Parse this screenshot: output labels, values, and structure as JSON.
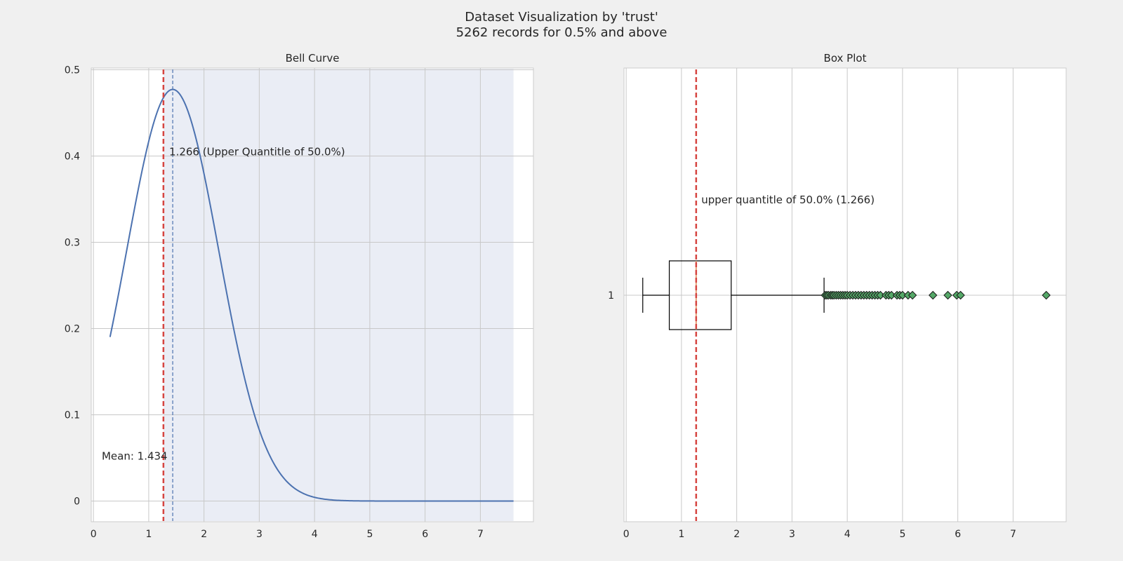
{
  "figure": {
    "title_line1": "Dataset Visualization by 'trust'",
    "title_line2": "5262 records for 0.5% and above",
    "background_color": "#f0f0f0"
  },
  "chart_data": [
    {
      "type": "line",
      "title": "Bell Curve",
      "xlabel": "",
      "ylabel": "",
      "xlim": [
        -0.04,
        7.96
      ],
      "ylim": [
        -0.024,
        0.502
      ],
      "xticks": [
        0,
        1,
        2,
        3,
        4,
        5,
        6,
        7
      ],
      "yticks": [
        0.0,
        0.1,
        0.2,
        0.3,
        0.4,
        0.5
      ],
      "grid": true,
      "series": [
        {
          "normal_curve": {
            "mean": 1.434,
            "std": 0.836,
            "x_start": 0.3,
            "x_end": 7.6
          },
          "color": "#4c72b0"
        }
      ],
      "shaded_region": {
        "x_start": 1.266,
        "x_end": 7.6,
        "color": "#eaedf5"
      },
      "reference_lines": [
        {
          "x": 1.266,
          "style": "dashed",
          "color": "#d64541",
          "role": "upper quantile"
        },
        {
          "x": 1.434,
          "style": "dashed",
          "color": "#4c72b0",
          "role": "mean"
        }
      ],
      "annotations": [
        {
          "text": "1.266 (Upper Quantitle of 50.0%)",
          "x": 1.37,
          "y": 0.405
        },
        {
          "text": "Mean: 1.434",
          "x": 0.15,
          "y": 0.052
        }
      ]
    },
    {
      "type": "box",
      "title": "Box Plot",
      "xlim": [
        -0.04,
        7.96
      ],
      "xticks": [
        0,
        1,
        2,
        3,
        4,
        5,
        6,
        7
      ],
      "yticks": [
        "1"
      ],
      "grid": true,
      "box": {
        "whisker_low": 0.3,
        "q1": 0.78,
        "median": 1.266,
        "q3": 1.9,
        "whisker_high": 3.58,
        "median_color": "#dd8452"
      },
      "outliers": [
        3.6,
        3.63,
        3.66,
        3.7,
        3.73,
        3.76,
        3.8,
        3.84,
        3.88,
        3.92,
        3.96,
        4.0,
        4.05,
        4.1,
        4.15,
        4.2,
        4.25,
        4.3,
        4.35,
        4.4,
        4.45,
        4.5,
        4.55,
        4.6,
        4.7,
        4.75,
        4.8,
        4.9,
        4.95,
        5.0,
        5.1,
        5.18,
        5.55,
        5.82,
        5.98,
        6.05,
        7.6
      ],
      "outlier_color": "#55a868",
      "reference_lines": [
        {
          "x": 1.266,
          "style": "dashed",
          "color": "#d64541",
          "role": "upper quantile"
        }
      ],
      "annotations": [
        {
          "text": "upper quantitle of 50.0% (1.266)",
          "x": 1.36
        }
      ]
    }
  ]
}
